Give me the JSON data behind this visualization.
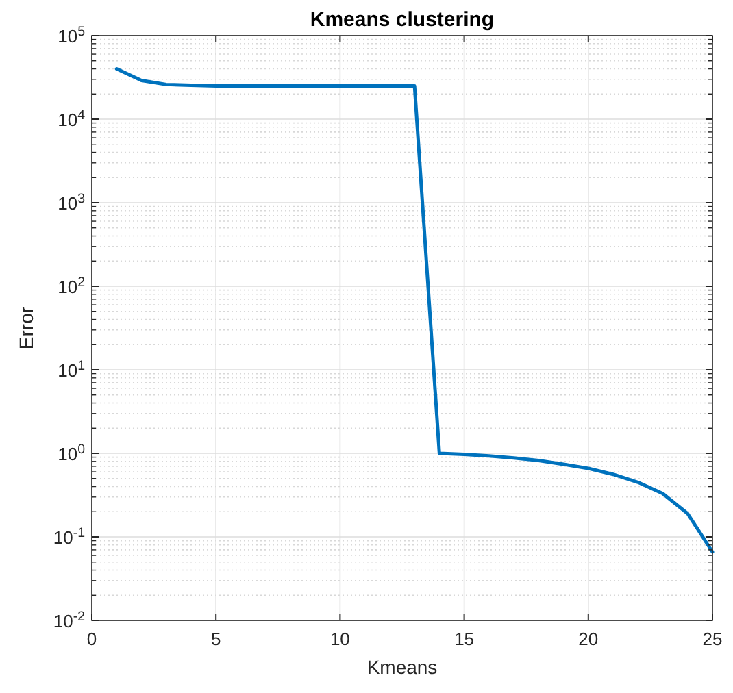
{
  "chart_data": {
    "type": "line",
    "title": "Kmeans clustering",
    "xlabel": "Kmeans",
    "ylabel": "Error",
    "log": "y",
    "grid": true,
    "line_style": "solid",
    "marker": "none",
    "xlim": [
      0,
      25
    ],
    "xticks": [
      0,
      5,
      10,
      15,
      20,
      25
    ],
    "ylim": [
      0.01,
      100000
    ],
    "yticks": [
      {
        "value": 0.01,
        "label": "10$^{-2}$"
      },
      {
        "value": 0.1,
        "label": "10$^{-1}$"
      },
      {
        "value": 1,
        "label": "10$^{0}$"
      },
      {
        "value": 10,
        "label": "10$^{1}$"
      },
      {
        "value": 100,
        "label": "10$^{2}$"
      },
      {
        "value": 1000,
        "label": "10$^{3}$"
      },
      {
        "value": 10000,
        "label": "10$^{4}$"
      },
      {
        "value": 100000,
        "label": "10$^{5}$"
      }
    ],
    "x": [
      1,
      2,
      3,
      4,
      5,
      6,
      7,
      8,
      9,
      10,
      11,
      12,
      13,
      14,
      15,
      16,
      17,
      18,
      19,
      20,
      21,
      22,
      23,
      24,
      25
    ],
    "series": [
      {
        "color": "#0072bd",
        "values": [
          40000,
          29000,
          26000,
          25500,
          25000,
          25000,
          25000,
          25000,
          25000,
          25000,
          25000,
          25000,
          25000,
          1.0,
          0.97,
          0.93,
          0.88,
          0.82,
          0.74,
          0.66,
          0.56,
          0.45,
          0.33,
          0.19,
          0.066
        ]
      }
    ]
  }
}
